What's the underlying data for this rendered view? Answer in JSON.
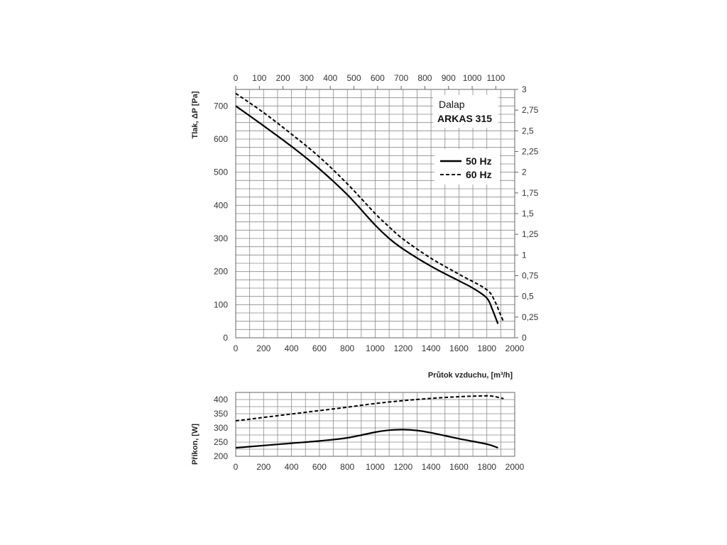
{
  "legend": {
    "brand": "Dalap",
    "model": "ARKAS 315",
    "series": [
      {
        "label": "50 Hz",
        "style": "solid"
      },
      {
        "label": "60 Hz",
        "style": "dashed"
      }
    ]
  },
  "colors": {
    "line": "#000000",
    "grid": "#8a8a8a",
    "text": "#333333",
    "background": "#ffffff"
  },
  "chart_data": [
    {
      "type": "line",
      "ylabel": "Tlak, ΔP [Pa]",
      "xlabel": "Průtok vzduchu, [m³/h]",
      "xlim": [
        0,
        2000
      ],
      "ylim": [
        0,
        750
      ],
      "x_ticks": [
        "0",
        "200",
        "400",
        "600",
        "800",
        "1000",
        "1200",
        "1400",
        "1600",
        "1800",
        "2000"
      ],
      "y_ticks": [
        "0",
        "100",
        "200",
        "300",
        "400",
        "500",
        "600",
        "700"
      ],
      "top_axis": {
        "lim": [
          0,
          1180
        ],
        "ticks": [
          "0",
          "100",
          "200",
          "300",
          "400",
          "500",
          "600",
          "700",
          "800",
          "900",
          "1000",
          "1100"
        ]
      },
      "right_axis": {
        "lim": [
          0,
          3
        ],
        "ticks": [
          "0",
          "0,25",
          "0,5",
          "0,75",
          "1",
          "1,25",
          "1,5",
          "1,75",
          "2",
          "2,25",
          "2,5",
          "2,75",
          "3"
        ]
      },
      "grid": true,
      "legend_position": "top-right",
      "series": [
        {
          "name": "50 Hz",
          "style": "solid",
          "x": [
            0,
            200,
            400,
            600,
            800,
            1000,
            1100,
            1200,
            1400,
            1600,
            1700,
            1800,
            1840,
            1880
          ],
          "y": [
            700,
            640,
            578,
            510,
            432,
            340,
            300,
            268,
            216,
            172,
            150,
            120,
            85,
            42
          ]
        },
        {
          "name": "60 Hz",
          "style": "dashed",
          "x": [
            0,
            200,
            400,
            600,
            800,
            1000,
            1100,
            1200,
            1400,
            1600,
            1800,
            1860,
            1890,
            1920
          ],
          "y": [
            738,
            680,
            615,
            546,
            465,
            375,
            335,
            298,
            240,
            192,
            145,
            108,
            78,
            48
          ]
        }
      ]
    },
    {
      "type": "line",
      "ylabel": "Příkon, [W]",
      "xlim": [
        0,
        2000
      ],
      "ylim": [
        200,
        425
      ],
      "x_ticks": [
        "0",
        "200",
        "400",
        "600",
        "800",
        "1000",
        "1200",
        "1400",
        "1600",
        "1800",
        "2000"
      ],
      "y_ticks": [
        "200",
        "250",
        "300",
        "350",
        "400"
      ],
      "grid": true,
      "series": [
        {
          "style": "solid",
          "x": [
            0,
            200,
            400,
            600,
            800,
            1000,
            1100,
            1200,
            1300,
            1400,
            1600,
            1800,
            1880
          ],
          "y": [
            230,
            238,
            246,
            254,
            265,
            285,
            292,
            294,
            291,
            283,
            262,
            243,
            230
          ]
        },
        {
          "style": "dashed",
          "x": [
            0,
            200,
            400,
            600,
            800,
            1000,
            1200,
            1400,
            1600,
            1800,
            1860,
            1920
          ],
          "y": [
            325,
            337,
            349,
            361,
            373,
            386,
            396,
            404,
            410,
            413,
            410,
            403
          ]
        }
      ]
    }
  ]
}
